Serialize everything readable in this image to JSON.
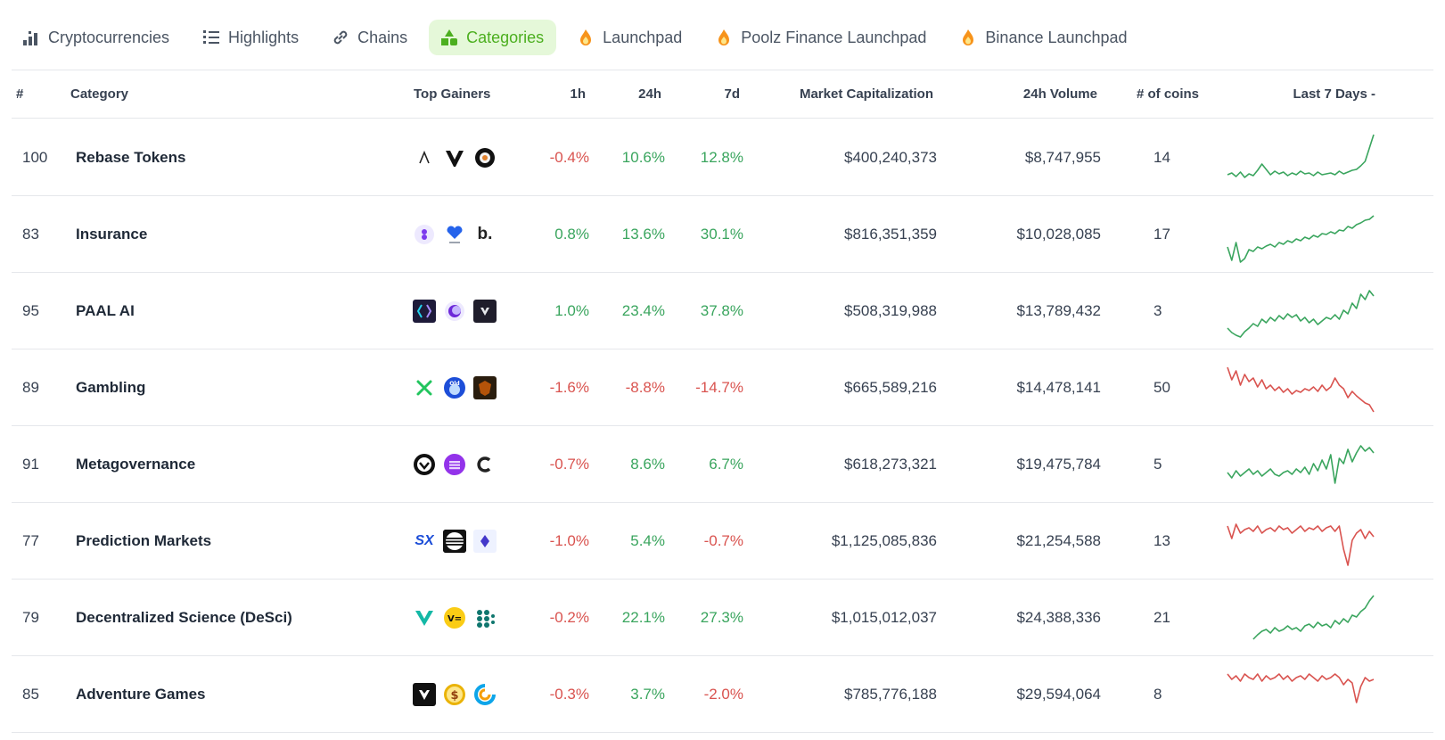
{
  "nav": {
    "tabs": [
      {
        "label": "Cryptocurrencies",
        "icon": "bar-chart-icon",
        "active": false
      },
      {
        "label": "Highlights",
        "icon": "list-ordered-icon",
        "active": false
      },
      {
        "label": "Chains",
        "icon": "link-icon",
        "active": false
      },
      {
        "label": "Categories",
        "icon": "shapes-icon",
        "active": true
      },
      {
        "label": "Launchpad",
        "icon": "flame-icon",
        "active": false
      },
      {
        "label": "Poolz Finance Launchpad",
        "icon": "flame-icon",
        "active": false
      },
      {
        "label": "Binance Launchpad",
        "icon": "flame-icon",
        "active": false
      }
    ]
  },
  "headers": {
    "rank": "#",
    "category": "Category",
    "top_gainers": "Top Gainers",
    "h1": "1h",
    "h24": "24h",
    "d7": "7d",
    "market_cap": "Market Capitalization",
    "volume": "24h Volume",
    "coins": "# of coins",
    "last7": "Last 7 Days -"
  },
  "colors": {
    "positive": "#3aa55e",
    "negative": "#d9534f",
    "active_tab_bg": "#e5f8d9",
    "active_tab_fg": "#4caf1f",
    "flame": "#f7931a"
  },
  "rows": [
    {
      "rank": "100",
      "category": "Rebase Tokens",
      "h1": "-0.4%",
      "h24": "10.6%",
      "d7": "12.8%",
      "market_cap": "$400,240,373",
      "volume": "$8,747,955",
      "coins": "14",
      "trend": "up",
      "gainer_icons": [
        "ampleforth-icon",
        "wolf-logo-icon",
        "token-shield-icon"
      ],
      "spark": [
        50,
        48,
        52,
        47,
        53,
        49,
        51,
        45,
        38,
        44,
        50,
        46,
        49,
        47,
        51,
        48,
        50,
        46,
        49,
        48,
        51,
        47,
        50,
        49,
        48,
        50,
        46,
        49,
        47,
        45,
        44,
        40,
        35,
        20,
        5
      ]
    },
    {
      "rank": "83",
      "category": "Insurance",
      "h1": "0.8%",
      "h24": "13.6%",
      "d7": "30.1%",
      "market_cap": "$816,351,359",
      "volume": "$10,028,085",
      "coins": "17",
      "trend": "up",
      "gainer_icons": [
        "purple-drop-icon",
        "fairy-heart-icon",
        "b-dot-icon"
      ],
      "spark": [
        45,
        60,
        40,
        62,
        58,
        48,
        50,
        45,
        47,
        44,
        42,
        45,
        40,
        42,
        38,
        40,
        36,
        38,
        34,
        36,
        32,
        34,
        30,
        31,
        28,
        30,
        26,
        27,
        22,
        24,
        20,
        18,
        15,
        14,
        10
      ]
    },
    {
      "rank": "95",
      "category": "PAAL AI",
      "h1": "1.0%",
      "h24": "23.4%",
      "d7": "37.8%",
      "market_cap": "$508,319,988",
      "volume": "$13,789,432",
      "coins": "3",
      "trend": "up",
      "gainer_icons": [
        "paal-bracket-icon",
        "moon-coin-icon",
        "v-shield-icon"
      ],
      "spark": [
        50,
        55,
        58,
        60,
        54,
        50,
        45,
        48,
        40,
        44,
        38,
        42,
        36,
        40,
        34,
        38,
        35,
        42,
        38,
        44,
        40,
        46,
        42,
        38,
        40,
        35,
        40,
        30,
        34,
        22,
        28,
        12,
        18,
        8,
        14
      ]
    },
    {
      "rank": "89",
      "category": "Gambling",
      "h1": "-1.6%",
      "h24": "-8.8%",
      "d7": "-14.7%",
      "market_cap": "$665,589,216",
      "volume": "$14,478,141",
      "coins": "50",
      "trend": "down",
      "gainer_icons": [
        "x-cross-icon",
        "old-circle-icon",
        "shield-game-icon"
      ],
      "spark": [
        8,
        22,
        12,
        28,
        16,
        24,
        20,
        30,
        22,
        32,
        28,
        34,
        30,
        36,
        32,
        38,
        34,
        36,
        32,
        34,
        30,
        35,
        28,
        34,
        30,
        20,
        28,
        32,
        42,
        35,
        40,
        44,
        48,
        50,
        58
      ]
    },
    {
      "rank": "91",
      "category": "Metagovernance",
      "h1": "-0.7%",
      "h24": "8.6%",
      "d7": "6.7%",
      "market_cap": "$618,273,321",
      "volume": "$19,475,784",
      "coins": "5",
      "trend": "up",
      "gainer_icons": [
        "heart-ring-icon",
        "stack-coin-icon",
        "c-logo-icon"
      ],
      "spark": [
        40,
        46,
        38,
        44,
        40,
        36,
        42,
        38,
        44,
        40,
        36,
        42,
        44,
        40,
        38,
        42,
        36,
        40,
        34,
        42,
        30,
        38,
        26,
        36,
        20,
        52,
        24,
        30,
        14,
        28,
        18,
        10,
        16,
        12,
        18
      ]
    },
    {
      "rank": "77",
      "category": "Prediction Markets",
      "h1": "-1.0%",
      "h24": "5.4%",
      "d7": "-0.7%",
      "market_cap": "$1,125,085,836",
      "volume": "$21,254,588",
      "coins": "13",
      "trend": "down",
      "gainer_icons": [
        "sx-logo-icon",
        "stripes-circle-icon",
        "diamond-icon"
      ],
      "spark": [
        14,
        28,
        12,
        22,
        18,
        16,
        20,
        14,
        22,
        18,
        16,
        20,
        14,
        18,
        16,
        22,
        18,
        14,
        20,
        16,
        18,
        14,
        20,
        16,
        14,
        20,
        14,
        40,
        58,
        30,
        22,
        18,
        28,
        20,
        26
      ]
    },
    {
      "rank": "79",
      "category": "Decentralized Science (DeSci)",
      "h1": "-0.2%",
      "h24": "22.1%",
      "d7": "27.3%",
      "market_cap": "$1,015,012,037",
      "volume": "$24,388,336",
      "coins": "21",
      "trend": "up",
      "gainer_icons": [
        "v-heart-icon",
        "vf-coin-icon",
        "dots-grid-icon"
      ],
      "spark": [
        null,
        null,
        null,
        null,
        null,
        null,
        55,
        50,
        46,
        44,
        48,
        42,
        46,
        44,
        40,
        44,
        42,
        46,
        40,
        38,
        42,
        36,
        40,
        38,
        42,
        34,
        38,
        32,
        36,
        28,
        30,
        24,
        20,
        12,
        6
      ]
    },
    {
      "rank": "85",
      "category": "Adventure Games",
      "h1": "-0.3%",
      "h24": "3.7%",
      "d7": "-2.0%",
      "market_cap": "$785,776,188",
      "volume": "$29,594,064",
      "coins": "8",
      "trend": "down",
      "gainer_icons": [
        "mask-icon",
        "dollar-coin-icon",
        "swirl-icon"
      ],
      "spark": [
        8,
        14,
        10,
        16,
        8,
        12,
        14,
        8,
        16,
        10,
        14,
        12,
        8,
        14,
        10,
        16,
        12,
        10,
        14,
        8,
        12,
        16,
        10,
        14,
        12,
        8,
        12,
        20,
        14,
        18,
        40,
        22,
        12,
        16,
        14
      ]
    }
  ]
}
